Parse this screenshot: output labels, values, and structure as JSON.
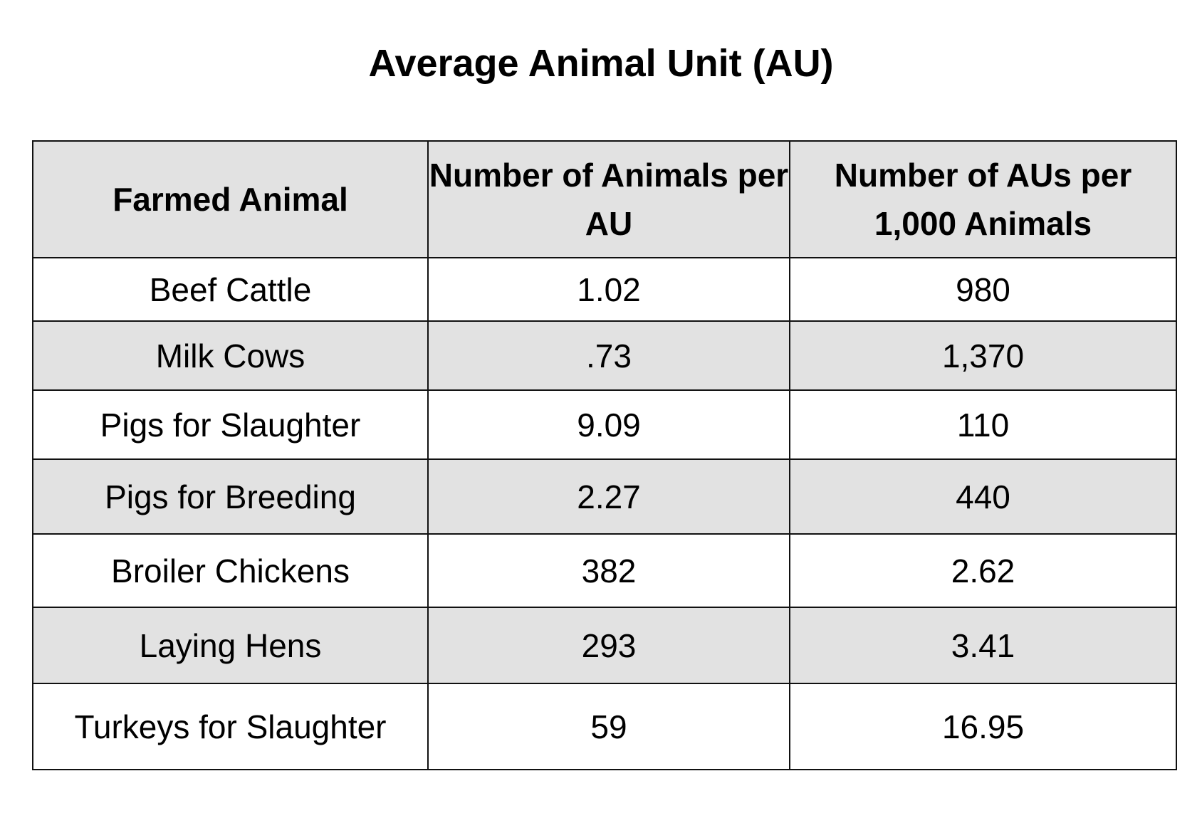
{
  "title": "Average Animal Unit (AU)",
  "table": {
    "header": [
      "Farmed Animal",
      "Number of Animals per AU",
      "Number of AUs per 1,000 Animals"
    ],
    "rows": [
      [
        "Beef Cattle",
        "1.02",
        "980"
      ],
      [
        "Milk Cows",
        ".73",
        "1,370"
      ],
      [
        "Pigs for Slaughter",
        "9.09",
        "110"
      ],
      [
        "Pigs for Breeding",
        "2.27",
        "440"
      ],
      [
        "Broiler Chickens",
        "382",
        "2.62"
      ],
      [
        "Laying Hens",
        "293",
        "3.41"
      ],
      [
        "Turkeys for Slaughter",
        "59",
        "16.95"
      ]
    ]
  }
}
